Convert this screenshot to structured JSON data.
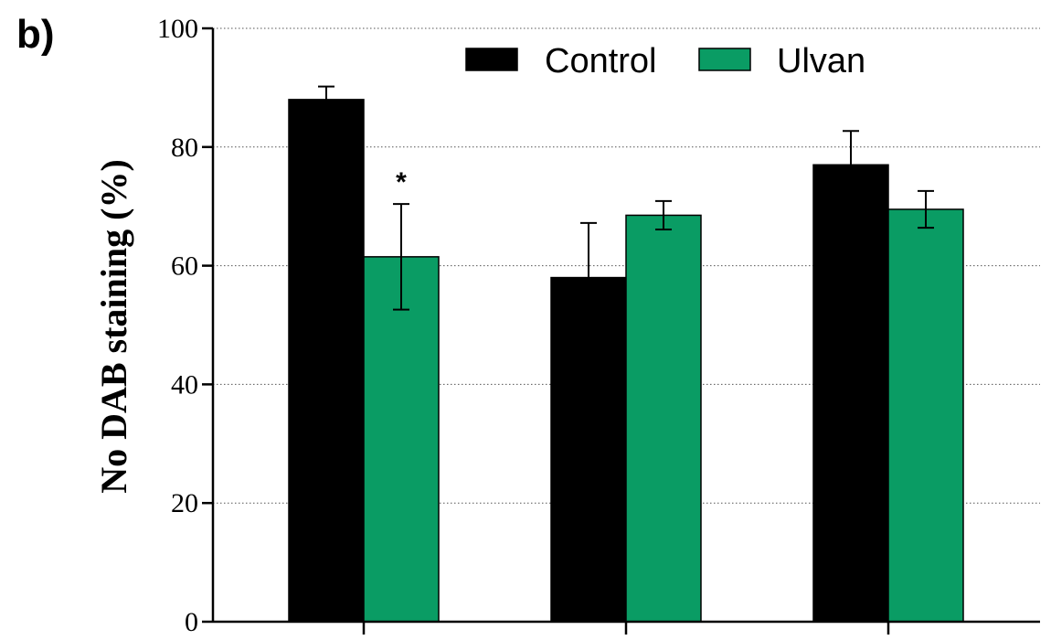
{
  "panel_label": "b)",
  "chart_data": {
    "type": "bar",
    "title": "",
    "xlabel": "",
    "ylabel": "No DAB staining (%)",
    "ylim": [
      0,
      100
    ],
    "yticks": [
      0,
      20,
      40,
      60,
      80,
      100
    ],
    "ytick_labels": [
      "0",
      "20",
      "40",
      "60",
      "80",
      "100"
    ],
    "grid": "horizontal dotted",
    "legend_placement": "top",
    "categories": [
      "",
      "",
      ""
    ],
    "series": [
      {
        "name": "Control",
        "color": "#000000",
        "values": [
          88,
          58,
          77
        ],
        "errors": [
          2.2,
          9.2,
          5.7
        ]
      },
      {
        "name": "Ulvan",
        "color": "#0a9c64",
        "values": [
          61.5,
          68.5,
          69.5
        ],
        "errors": [
          8.9,
          2.4,
          3.1
        ]
      }
    ],
    "annotations": [
      {
        "text": "*",
        "category_index": 0,
        "series_index": 1
      }
    ]
  }
}
